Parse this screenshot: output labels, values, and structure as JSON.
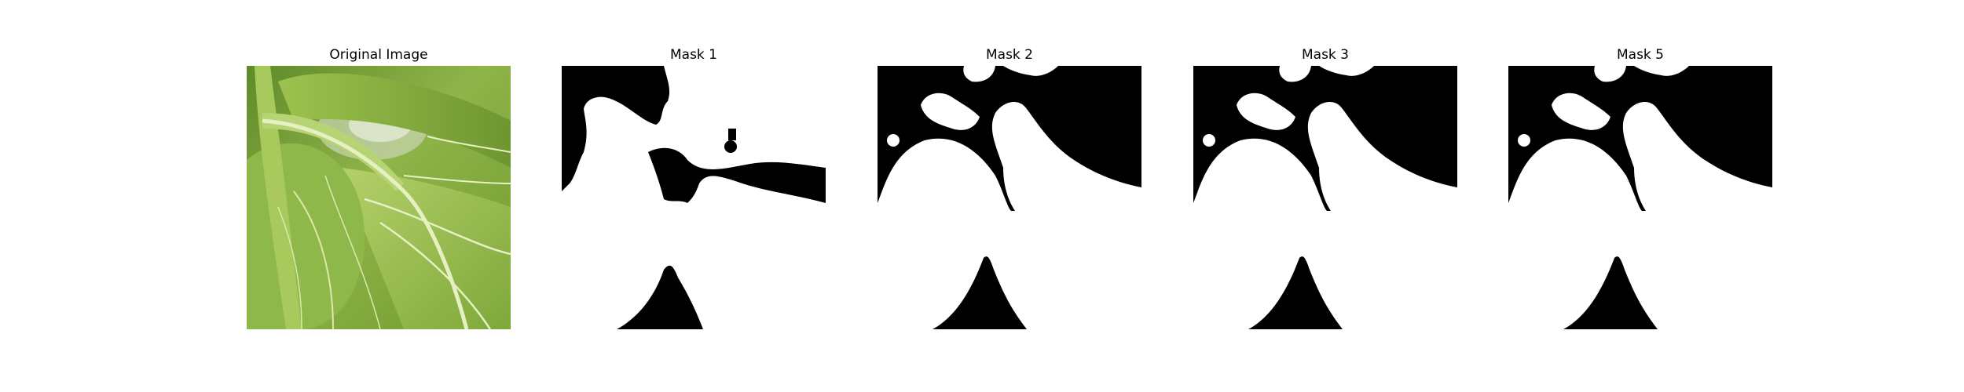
{
  "figure": {
    "panels": [
      {
        "title": "Original Image",
        "kind": "photo",
        "subject": "green-leaves"
      },
      {
        "title": "Mask 1",
        "kind": "mask"
      },
      {
        "title": "Mask 2",
        "kind": "mask"
      },
      {
        "title": "Mask 3",
        "kind": "mask"
      },
      {
        "title": "Mask 5",
        "kind": "mask"
      }
    ],
    "colors": {
      "mask_foreground": "#ffffff",
      "mask_background": "#000000",
      "leaf_light": "#a4c64e",
      "leaf_dark": "#6f9a2c",
      "vein": "#e6f0c2"
    }
  }
}
